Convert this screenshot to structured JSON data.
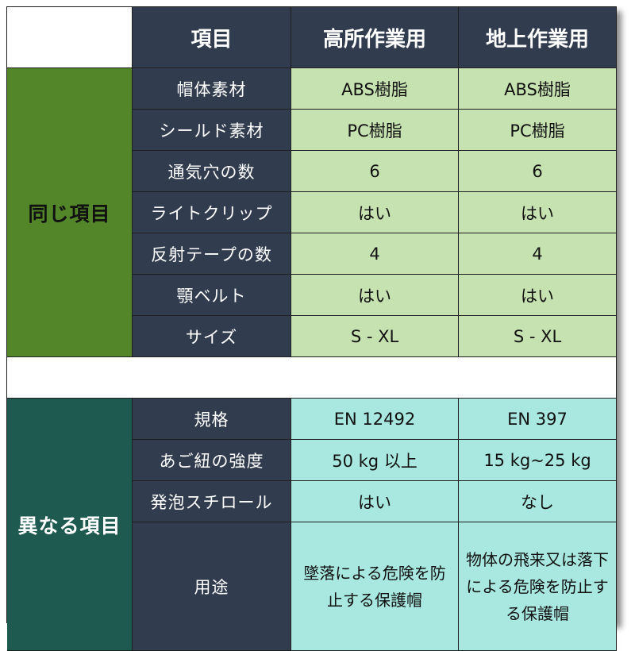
{
  "header": {
    "col1": "項目",
    "col2": "高所作業用",
    "col3": "地上作業用"
  },
  "groups": {
    "same": "同じ項目",
    "different": "異なる項目"
  },
  "same_rows": [
    {
      "item": "帽体素材",
      "high": "ABS樹脂",
      "ground": "ABS樹脂"
    },
    {
      "item": "シールド素材",
      "high": "PC樹脂",
      "ground": "PC樹脂"
    },
    {
      "item": "通気穴の数",
      "high": "6",
      "ground": "6"
    },
    {
      "item": "ライトクリップ",
      "high": "はい",
      "ground": "はい"
    },
    {
      "item": "反射テープの数",
      "high": "4",
      "ground": "4"
    },
    {
      "item": "顎ベルト",
      "high": "はい",
      "ground": "はい"
    },
    {
      "item": "サイズ",
      "high": "S - XL",
      "ground": "S - XL"
    }
  ],
  "diff_rows": [
    {
      "item": "規格",
      "high": "EN 12492",
      "ground": "EN 397"
    },
    {
      "item": "あご紐の強度",
      "high": "50 kg 以上",
      "ground": "15 kg~25 kg"
    },
    {
      "item": "発泡スチロール",
      "high": "はい",
      "ground": "なし"
    },
    {
      "item": "用途",
      "high": "墜落による危険を防止する保護帽",
      "ground": "物体の飛来又は落下による危険を防止する保護帽"
    }
  ]
}
